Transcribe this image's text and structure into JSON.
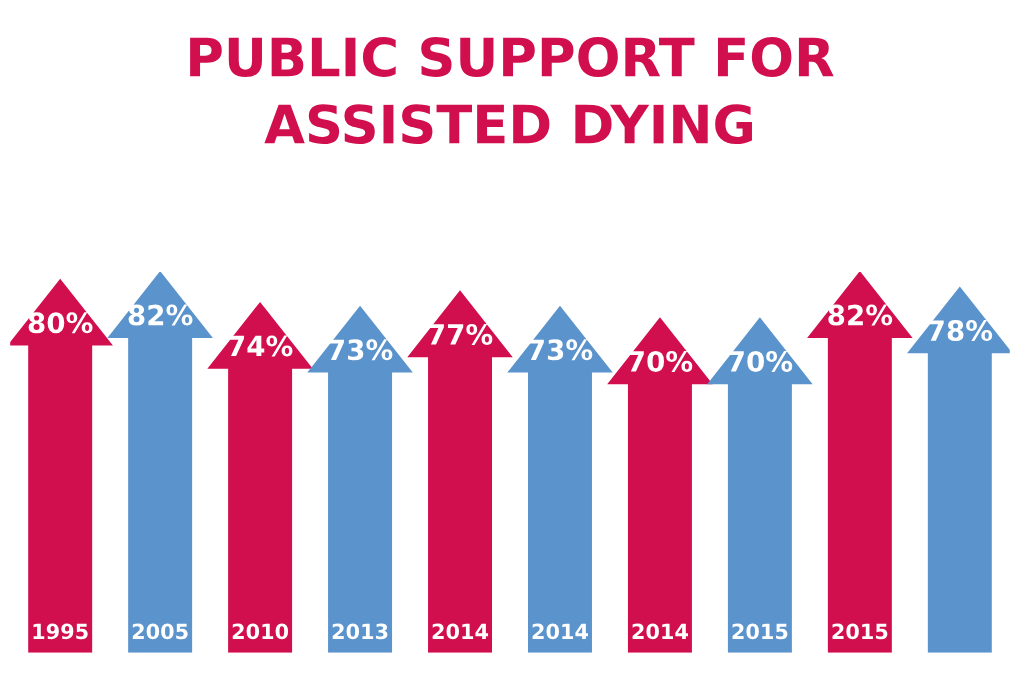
{
  "chart_data": {
    "type": "bar",
    "title": "PUBLIC SUPPORT FOR\nASSISTED DYING",
    "categories": [
      "1995",
      "2005",
      "2010",
      "2013",
      "2014",
      "2014",
      "2014",
      "2015",
      "2015",
      null
    ],
    "values": [
      80,
      82,
      74,
      73,
      77,
      73,
      70,
      70,
      82,
      78
    ],
    "colors": [
      "#d10f4f",
      "#5b93cc",
      "#d10f4f",
      "#5b93cc",
      "#d10f4f",
      "#5b93cc",
      "#d10f4f",
      "#5b93cc",
      "#d10f4f",
      "#5b93cc"
    ],
    "value_labels": [
      "80%",
      "82%",
      "74%",
      "73%",
      "77%",
      "73%",
      "70%",
      "70%",
      "82%",
      "78%"
    ],
    "legend": false
  }
}
